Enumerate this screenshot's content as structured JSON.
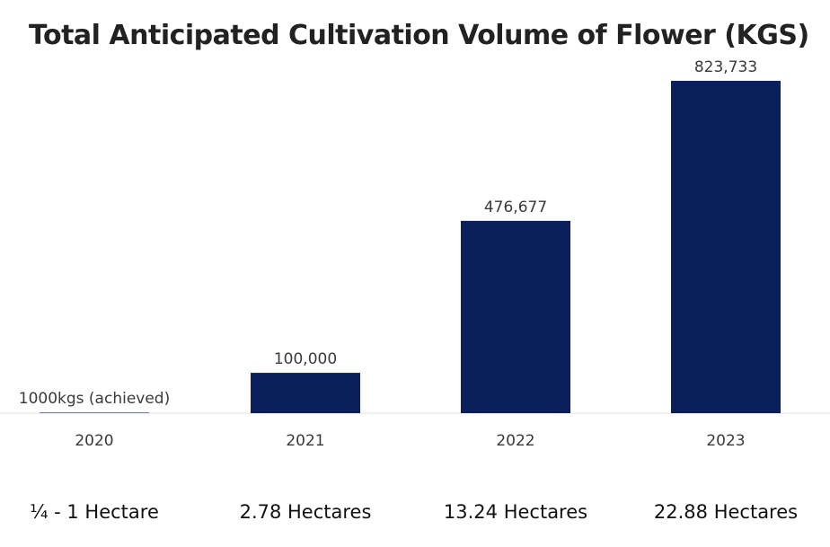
{
  "chart_data": {
    "type": "bar",
    "title": "Total Anticipated Cultivation Volume of Flower (KGS)",
    "categories": [
      "2020",
      "2021",
      "2022",
      "2023"
    ],
    "values": [
      1000,
      100000,
      476677,
      823733
    ],
    "data_labels": [
      "1000kgs (achieved)",
      "100,000",
      "476,677",
      "823,733"
    ],
    "sub_labels": [
      "¼ - 1 Hectare",
      "2.78 Hectares",
      "13.24 Hectares",
      "22.88 Hectares"
    ],
    "ylim": [
      0,
      823733
    ],
    "grid": false,
    "legend": "none",
    "colors": {
      "bar": "#0a1f5c",
      "axis": "#dddddd"
    }
  }
}
